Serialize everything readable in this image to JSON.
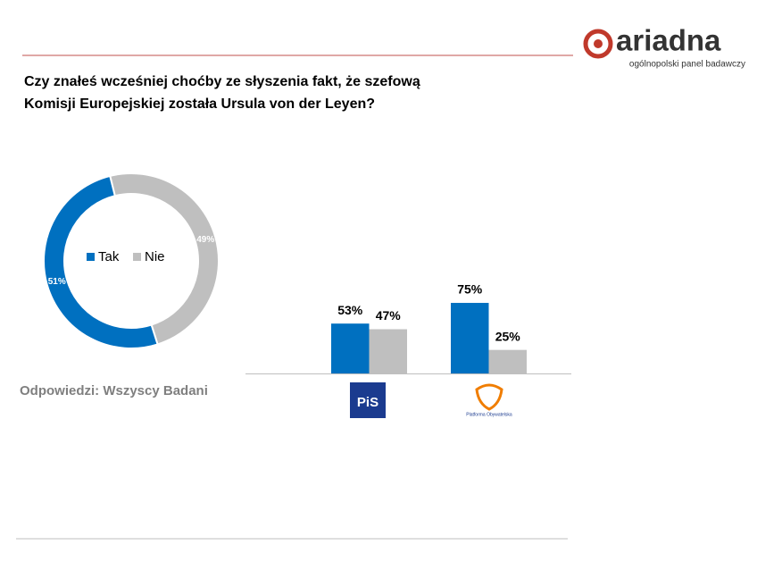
{
  "title": [
    "Czy znałeś wcześniej choćby ze słyszenia fakt, że szefową",
    "Komisji Europejskiej została Ursula von der Leyen?"
  ],
  "note": "Odpowiedzi: Wszyscy Badani",
  "logo": {
    "name": "ariadna",
    "tagline": "ogólnopolski panel badawczy"
  },
  "chart_data": [
    {
      "type": "donut",
      "categories": [
        "Tak",
        "Nie"
      ],
      "values": [
        51,
        49
      ],
      "value_labels": [
        "51%",
        "49%"
      ],
      "colors": [
        "#0070c0",
        "#bfbfbf"
      ]
    },
    {
      "type": "bar",
      "categories": [
        "PiS",
        "Platforma Obywatelska"
      ],
      "ylim": [
        0,
        100
      ],
      "series": [
        {
          "color": "#0070c0",
          "values": [
            53,
            75
          ],
          "value_labels": [
            "53%",
            "75%"
          ]
        },
        {
          "color": "#bfbfbf",
          "values": [
            47,
            25
          ],
          "value_labels": [
            "47%",
            "25%"
          ]
        }
      ]
    }
  ]
}
